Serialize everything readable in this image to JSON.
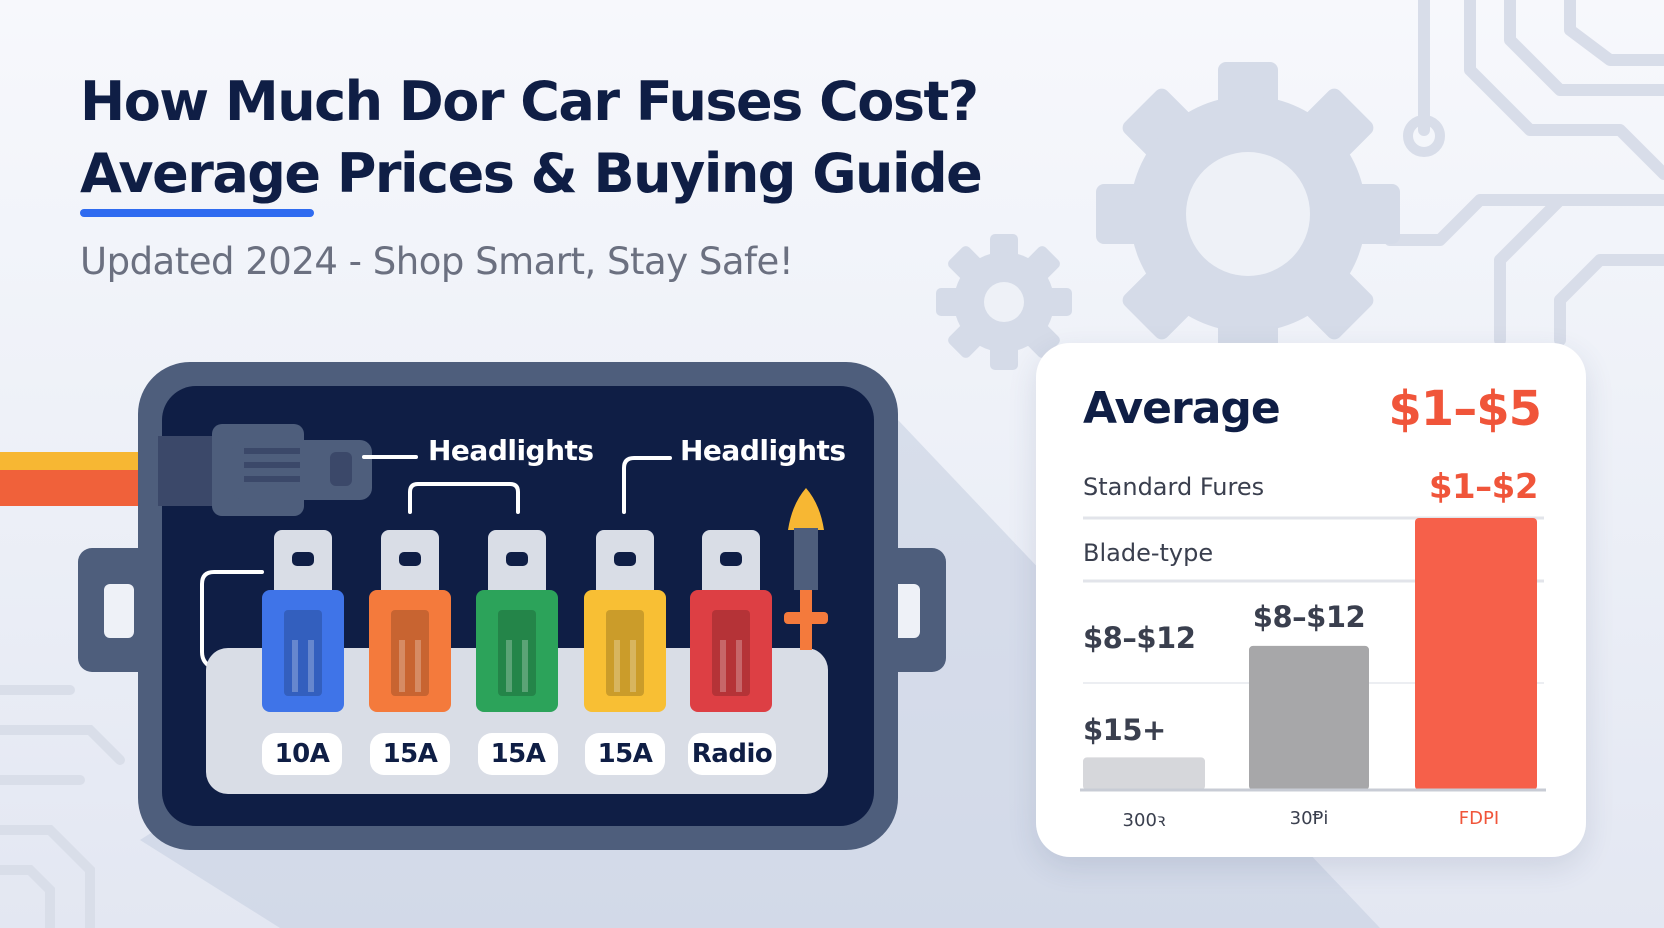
{
  "header": {
    "title_line1": "How Much Dor Car Fuses Cost?",
    "title_line2": "Average Prices & Buying Guide",
    "subtitle": "Updated 2024 - Shop Smart, Stay Safe!"
  },
  "fuse_box": {
    "callouts": [
      "Headlights",
      "Headlights"
    ],
    "fuses": [
      {
        "label": "10A",
        "color": "#3f74e8"
      },
      {
        "label": "15A",
        "color": "#f47a3c"
      },
      {
        "label": "15A",
        "color": "#2ca35a"
      },
      {
        "label": "15A",
        "color": "#f8bf34"
      },
      {
        "label": "Radio",
        "color": "#dd3f44"
      }
    ]
  },
  "price_card": {
    "heading": "Average",
    "range": "$1–$5",
    "row_labels": [
      "Standard Fures",
      "Blade-type",
      "$8–$12",
      "$15+"
    ],
    "row1_value": "$1–$2"
  },
  "chart_data": {
    "type": "bar",
    "categories": [
      "300ꝛ",
      "30Ᵽi",
      "FDPI"
    ],
    "series": [
      {
        "values_printed": [
          "",
          "$8–$12",
          "$1–$2"
        ]
      }
    ],
    "relative_heights": [
      0.12,
      0.53,
      1.0
    ],
    "colors": [
      "#d6d7db",
      "#a7a7a9",
      "#f6604a"
    ]
  },
  "colors": {
    "navy": "#0f1e45",
    "accent_blue": "#2f6bf0",
    "price_red": "#f0553a"
  }
}
